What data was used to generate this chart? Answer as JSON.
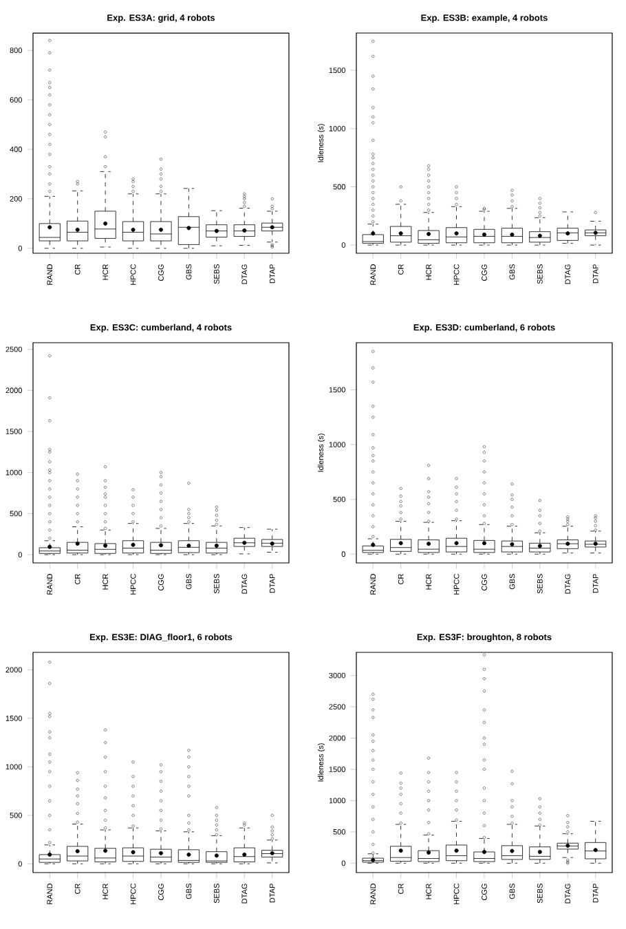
{
  "chart_data": [
    {
      "type": "box",
      "title": "Exp. ES3A: grid, 4 robots",
      "categories": [
        "RAND",
        "CR",
        "HCR",
        "HPCC",
        "CGG",
        "GBS",
        "SEBS",
        "DTAG",
        "DTAP"
      ],
      "ylim": [
        -20,
        870
      ],
      "yticks": [
        0,
        200,
        400,
        600,
        800
      ],
      "boxes": [
        {
          "low": 0,
          "q1": 30,
          "median": 44,
          "q3": 100,
          "high": 210,
          "mean": 85,
          "outliers": [
            230,
            260,
            300,
            330,
            380,
            420,
            460,
            500,
            540,
            580,
            620,
            650,
            670,
            720,
            790,
            840
          ]
        },
        {
          "low": 0,
          "q1": 30,
          "median": 65,
          "q3": 110,
          "high": 232,
          "mean": 75,
          "outliers": [
            260,
            270
          ]
        },
        {
          "low": 5,
          "q1": 40,
          "median": 78,
          "q3": 150,
          "high": 310,
          "mean": 100,
          "outliers": [
            330,
            370,
            450,
            470
          ]
        },
        {
          "low": 0,
          "q1": 30,
          "median": 65,
          "q3": 108,
          "high": 220,
          "mean": 75,
          "outliers": [
            230,
            250,
            270,
            280
          ]
        },
        {
          "low": 0,
          "q1": 30,
          "median": 58,
          "q3": 108,
          "high": 220,
          "mean": 75,
          "outliers": [
            230,
            250,
            280,
            300,
            320,
            360
          ]
        },
        {
          "low": 0,
          "q1": 15,
          "median": 85,
          "q3": 128,
          "high": 242,
          "mean": 82
        },
        {
          "low": 10,
          "q1": 45,
          "median": 70,
          "q3": 95,
          "high": 152,
          "mean": 70
        },
        {
          "low": 12,
          "q1": 48,
          "median": 70,
          "q3": 95,
          "high": 162,
          "mean": 72,
          "outliers": [
            170,
            185,
            200,
            210,
            220
          ]
        },
        {
          "low": 25,
          "q1": 70,
          "median": 85,
          "q3": 102,
          "high": 150,
          "mean": 85,
          "outliers": [
            5,
            10,
            15,
            160,
            170,
            200
          ]
        }
      ]
    },
    {
      "type": "box",
      "title": "Exp. ES3B: example, 4 robots",
      "ylabel": "Idleness (s)",
      "categories": [
        "RAND",
        "CR",
        "HCR",
        "HPCC",
        "CGG",
        "GBS",
        "SEBS",
        "DTAG",
        "DTAP"
      ],
      "ylim": [
        -70,
        1820
      ],
      "yticks": [
        0,
        500,
        1000,
        1500
      ],
      "boxes": [
        {
          "low": 0,
          "q1": 15,
          "median": 30,
          "q3": 90,
          "high": 180,
          "mean": 100,
          "outliers": [
            200,
            250,
            300,
            350,
            400,
            450,
            500,
            550,
            600,
            650,
            700,
            750,
            780,
            900,
            1050,
            1100,
            1180,
            1340,
            1450,
            1620,
            1750
          ]
        },
        {
          "low": 0,
          "q1": 25,
          "median": 80,
          "q3": 160,
          "high": 350,
          "mean": 100,
          "outliers": [
            380,
            500
          ]
        },
        {
          "low": 0,
          "q1": 15,
          "median": 45,
          "q3": 125,
          "high": 280,
          "mean": 95,
          "outliers": [
            300,
            350,
            400,
            450,
            500,
            550,
            600,
            650,
            680
          ]
        },
        {
          "low": 0,
          "q1": 20,
          "median": 70,
          "q3": 150,
          "high": 330,
          "mean": 100,
          "outliers": [
            350,
            400,
            450,
            500
          ]
        },
        {
          "low": 0,
          "q1": 20,
          "median": 75,
          "q3": 135,
          "high": 290,
          "mean": 90,
          "outliers": [
            305,
            315
          ]
        },
        {
          "low": 0,
          "q1": 20,
          "median": 75,
          "q3": 145,
          "high": 315,
          "mean": 90,
          "outliers": [
            330,
            380,
            430,
            470
          ]
        },
        {
          "low": 0,
          "q1": 25,
          "median": 65,
          "q3": 115,
          "high": 235,
          "mean": 80,
          "outliers": [
            250,
            280,
            320,
            360,
            400
          ]
        },
        {
          "low": 15,
          "q1": 40,
          "median": 105,
          "q3": 145,
          "high": 285,
          "mean": 100
        },
        {
          "low": 0,
          "q1": 80,
          "median": 105,
          "q3": 130,
          "high": 205,
          "mean": 105,
          "outliers": [
            280
          ]
        }
      ]
    },
    {
      "type": "box",
      "title": "Exp. ES3C: cumberland, 4 robots",
      "categories": [
        "RAND",
        "CR",
        "HCR",
        "HPCC",
        "CGG",
        "GBS",
        "SEBS",
        "DTAG",
        "DTAP"
      ],
      "ylim": [
        -100,
        2580
      ],
      "yticks": [
        0,
        500,
        1000,
        1500,
        2000,
        2500
      ],
      "boxes": [
        {
          "low": 0,
          "q1": 15,
          "median": 45,
          "q3": 85,
          "high": 170,
          "mean": 95,
          "outliers": [
            200,
            300,
            400,
            500,
            600,
            700,
            800,
            900,
            1000,
            1030,
            1130,
            1250,
            1280,
            1630,
            1910,
            2420
          ]
        },
        {
          "low": 0,
          "q1": 20,
          "median": 55,
          "q3": 150,
          "high": 340,
          "mean": 135,
          "outliers": [
            400,
            500,
            600,
            700,
            800,
            900,
            980
          ]
        },
        {
          "low": 0,
          "q1": 15,
          "median": 65,
          "q3": 135,
          "high": 300,
          "mean": 110,
          "outliers": [
            320,
            400,
            500,
            600,
            700,
            740,
            820,
            900,
            1070
          ]
        },
        {
          "low": 0,
          "q1": 20,
          "median": 80,
          "q3": 170,
          "high": 380,
          "mean": 120,
          "outliers": [
            400,
            500,
            600,
            700,
            790
          ]
        },
        {
          "low": 0,
          "q1": 15,
          "median": 55,
          "q3": 150,
          "high": 320,
          "mean": 115,
          "outliers": [
            350,
            450,
            550,
            650,
            750,
            850,
            950,
            1000
          ]
        },
        {
          "low": 0,
          "q1": 25,
          "median": 90,
          "q3": 170,
          "high": 380,
          "mean": 110,
          "outliers": [
            400,
            450,
            500,
            550,
            870
          ]
        },
        {
          "low": 0,
          "q1": 20,
          "median": 80,
          "q3": 150,
          "high": 350,
          "mean": 110,
          "outliers": [
            370,
            420,
            480,
            540,
            580
          ]
        },
        {
          "low": 10,
          "q1": 100,
          "median": 145,
          "q3": 200,
          "high": 330,
          "mean": 145
        },
        {
          "low": 30,
          "q1": 100,
          "median": 140,
          "q3": 185,
          "high": 310,
          "mean": 135
        }
      ]
    },
    {
      "type": "box",
      "title": "Exp. ES3D: cumberland, 6 robots",
      "ylabel": "Idleness (s)",
      "categories": [
        "RAND",
        "CR",
        "HCR",
        "HPCC",
        "CGG",
        "GBS",
        "SEBS",
        "DTAG",
        "DTAP"
      ],
      "ylim": [
        -80,
        1930
      ],
      "yticks": [
        0,
        500,
        1000,
        1500
      ],
      "boxes": [
        {
          "low": 0,
          "q1": 15,
          "median": 35,
          "q3": 75,
          "high": 140,
          "mean": 85,
          "outliers": [
            160,
            250,
            350,
            450,
            550,
            650,
            750,
            850,
            900,
            970,
            1090,
            1250,
            1350,
            1570,
            1700,
            1850
          ]
        },
        {
          "low": 0,
          "q1": 25,
          "median": 60,
          "q3": 135,
          "high": 300,
          "mean": 100,
          "outliers": [
            320,
            380,
            440,
            480,
            530,
            600
          ]
        },
        {
          "low": 0,
          "q1": 15,
          "median": 45,
          "q3": 130,
          "high": 290,
          "mean": 95,
          "outliers": [
            300,
            380,
            460,
            520,
            570,
            690,
            810
          ]
        },
        {
          "low": 0,
          "q1": 20,
          "median": 70,
          "q3": 145,
          "high": 305,
          "mean": 100,
          "outliers": [
            320,
            400,
            480,
            550,
            610,
            690
          ]
        },
        {
          "low": 0,
          "q1": 15,
          "median": 45,
          "q3": 125,
          "high": 270,
          "mean": 100,
          "outliers": [
            280,
            350,
            450,
            550,
            650,
            750,
            850,
            930,
            980
          ]
        },
        {
          "low": 0,
          "q1": 20,
          "median": 70,
          "q3": 120,
          "high": 255,
          "mean": 90,
          "outliers": [
            270,
            350,
            430,
            500,
            540,
            640
          ]
        },
        {
          "low": 0,
          "q1": 20,
          "median": 55,
          "q3": 100,
          "high": 195,
          "mean": 75,
          "outliers": [
            210,
            280,
            350,
            400,
            490
          ]
        },
        {
          "low": 10,
          "q1": 50,
          "median": 95,
          "q3": 130,
          "high": 255,
          "mean": 95,
          "outliers": [
            270,
            300,
            320,
            340
          ]
        },
        {
          "low": 10,
          "q1": 65,
          "median": 90,
          "q3": 120,
          "high": 210,
          "mean": 95,
          "outliers": [
            220,
            260,
            300,
            330,
            350
          ]
        }
      ]
    },
    {
      "type": "box",
      "title": "Exp. ES3E: DIAG_floor1, 6 robots",
      "categories": [
        "RAND",
        "CR",
        "HCR",
        "HPCC",
        "CGG",
        "GBS",
        "SEBS",
        "DTAG",
        "DTAP"
      ],
      "ylim": [
        -90,
        2180
      ],
      "yticks": [
        0,
        500,
        1000,
        1500,
        2000
      ],
      "boxes": [
        {
          "low": 0,
          "q1": 15,
          "median": 50,
          "q3": 95,
          "high": 195,
          "mean": 95,
          "outliers": [
            220,
            350,
            500,
            650,
            800,
            950,
            1050,
            1130,
            1300,
            1360,
            1520,
            1550,
            1860,
            2080
          ]
        },
        {
          "low": 0,
          "q1": 30,
          "median": 80,
          "q3": 180,
          "high": 410,
          "mean": 130,
          "outliers": [
            430,
            520,
            620,
            700,
            770,
            860,
            940
          ]
        },
        {
          "low": 0,
          "q1": 20,
          "median": 60,
          "q3": 160,
          "high": 350,
          "mean": 135,
          "outliers": [
            370,
            450,
            550,
            680,
            800,
            950,
            1100,
            1250,
            1380
          ]
        },
        {
          "low": 0,
          "q1": 25,
          "median": 80,
          "q3": 165,
          "high": 370,
          "mean": 120,
          "outliers": [
            390,
            500,
            600,
            700,
            800,
            900,
            1050
          ]
        },
        {
          "low": 0,
          "q1": 20,
          "median": 70,
          "q3": 150,
          "high": 340,
          "mean": 110,
          "outliers": [
            360,
            450,
            550,
            650,
            750,
            850,
            950,
            1020
          ]
        },
        {
          "low": 0,
          "q1": 15,
          "median": 35,
          "q3": 145,
          "high": 330,
          "mean": 95,
          "outliers": [
            350,
            420,
            500,
            700,
            800,
            900,
            1000,
            1100,
            1170
          ]
        },
        {
          "low": 0,
          "q1": 15,
          "median": 30,
          "q3": 125,
          "high": 290,
          "mean": 85,
          "outliers": [
            300,
            350,
            400,
            450,
            500,
            580
          ]
        },
        {
          "low": 0,
          "q1": 20,
          "median": 75,
          "q3": 165,
          "high": 370,
          "mean": 95,
          "outliers": [
            400,
            420
          ]
        },
        {
          "low": 10,
          "q1": 70,
          "median": 105,
          "q3": 140,
          "high": 245,
          "mean": 110,
          "outliers": [
            260,
            300,
            340,
            380,
            500
          ]
        }
      ]
    },
    {
      "type": "box",
      "title": "Exp. ES3F: broughton, 8 robots",
      "ylabel": "Idleness (s)",
      "categories": [
        "RAND",
        "CR",
        "HCR",
        "HPCC",
        "CGG",
        "GBS",
        "SEBS",
        "DTAG",
        "DTAP"
      ],
      "ylim": [
        -150,
        3370
      ],
      "yticks": [
        0,
        500,
        1000,
        1500,
        2000,
        2500,
        3000
      ],
      "boxes": [
        {
          "low": 0,
          "q1": 15,
          "median": 40,
          "q3": 80,
          "high": 150,
          "mean": 50,
          "outliers": [
            160,
            300,
            500,
            700,
            900,
            1100,
            1300,
            1500,
            1650,
            1800,
            1950,
            2050,
            2330,
            2450,
            2620,
            2700
          ]
        },
        {
          "low": 0,
          "q1": 30,
          "median": 90,
          "q3": 270,
          "high": 620,
          "mean": 200,
          "outliers": [
            640,
            800,
            950,
            1100,
            1200,
            1280,
            1440
          ]
        },
        {
          "low": 0,
          "q1": 25,
          "median": 75,
          "q3": 200,
          "high": 450,
          "mean": 170,
          "outliers": [
            470,
            650,
            850,
            1000,
            1150,
            1300,
            1450,
            1680
          ]
        },
        {
          "low": 0,
          "q1": 40,
          "median": 120,
          "q3": 290,
          "high": 670,
          "mean": 200,
          "outliers": [
            690,
            850,
            1000,
            1150,
            1300,
            1450
          ]
        },
        {
          "low": 0,
          "q1": 25,
          "median": 75,
          "q3": 180,
          "high": 395,
          "mean": 180,
          "outliers": [
            410,
            600,
            800,
            1000,
            1200,
            1500,
            1650,
            1900,
            2000,
            2250,
            2450,
            2750,
            2950,
            3100,
            3330
          ]
        },
        {
          "low": 0,
          "q1": 60,
          "median": 120,
          "q3": 280,
          "high": 620,
          "mean": 195,
          "outliers": [
            640,
            750,
            900,
            1000,
            1270,
            1470
          ]
        },
        {
          "low": 0,
          "q1": 60,
          "median": 110,
          "q3": 260,
          "high": 595,
          "mean": 180,
          "outliers": [
            610,
            700,
            800,
            900,
            1030
          ]
        },
        {
          "low": 90,
          "q1": 225,
          "median": 275,
          "q3": 320,
          "high": 470,
          "mean": 280,
          "outliers": [
            0,
            20,
            50,
            500,
            580,
            650,
            760
          ]
        },
        {
          "low": 0,
          "q1": 70,
          "median": 195,
          "q3": 330,
          "high": 670,
          "mean": 210
        }
      ]
    }
  ]
}
